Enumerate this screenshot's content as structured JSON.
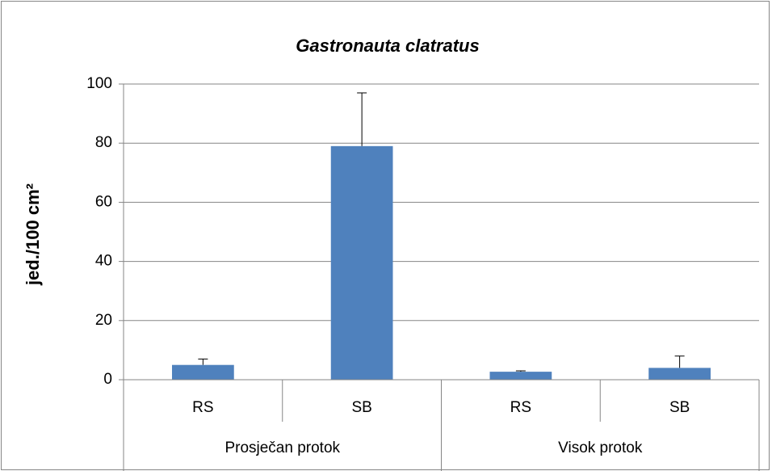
{
  "chart_data": {
    "type": "bar",
    "title": "Gastronauta clatratus",
    "y_label": "jed./100 cm²",
    "categories": [
      "RS",
      "SB",
      "RS",
      "SB"
    ],
    "groups": [
      "Prosječan protok",
      "Visok protok"
    ],
    "values": [
      5,
      79,
      2.7,
      4
    ],
    "errors": [
      2,
      18,
      0.3,
      4
    ],
    "color": "#4f81bd",
    "ylim": [
      0,
      100
    ],
    "yticks": [
      0,
      20,
      40,
      60,
      80,
      100
    ],
    "grid": true
  }
}
